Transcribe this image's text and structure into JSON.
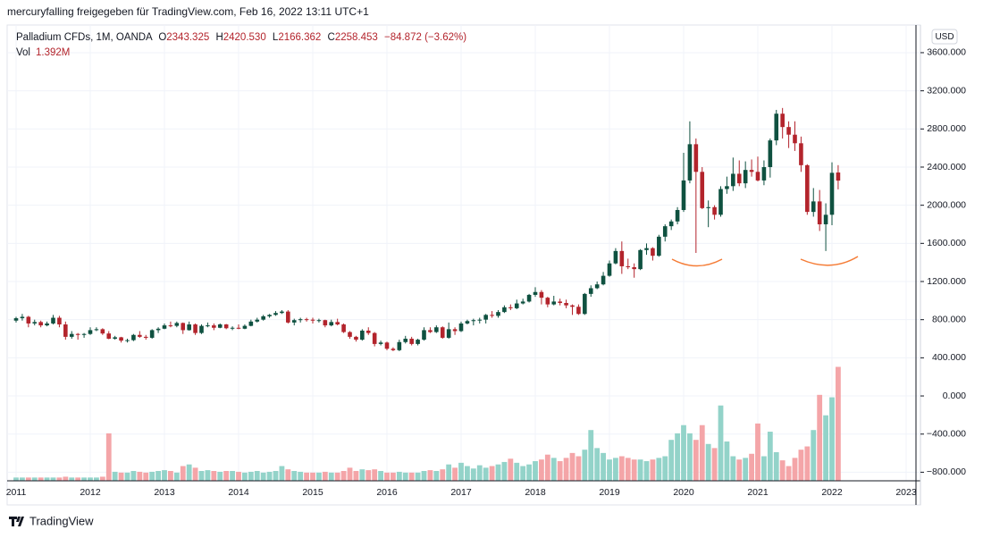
{
  "header": {
    "author": "mercuryfalling freigegeben für TradingView.com, Feb 16, 2022 13:11 UTC+1",
    "currency": "USD",
    "brand": "TradingView"
  },
  "chart_data": {
    "type": "candlestick",
    "title": "Palladium CFDs, 1M, OANDA",
    "legend": {
      "open_prefix": "O",
      "open": "2343.325",
      "high_prefix": "H",
      "high": "2420.530",
      "low_prefix": "L",
      "low": "2166.362",
      "close_prefix": "C",
      "close": "2258.453",
      "change": "−84.872 (−3.62%)",
      "volume_prefix": "Vol",
      "volume": "1.392M"
    },
    "up_color": "#0f5140",
    "down_color": "#b3242c",
    "volume_up_color": "#93d3c9",
    "volume_down_color": "#f4a5a8",
    "grid": true,
    "ylim": [
      -890,
      3890
    ],
    "yticks": [
      {
        "value": 3600,
        "label": "3600.000"
      },
      {
        "value": 3200,
        "label": "3200.000"
      },
      {
        "value": 2800,
        "label": "2800.000"
      },
      {
        "value": 2400,
        "label": "2400.000"
      },
      {
        "value": 2000,
        "label": "2000.000"
      },
      {
        "value": 1600,
        "label": "1600.000"
      },
      {
        "value": 1200,
        "label": "1200.000"
      },
      {
        "value": 800,
        "label": "800.000"
      },
      {
        "value": 400,
        "label": "400.000"
      },
      {
        "value": 0,
        "label": "0.000"
      },
      {
        "value": -400,
        "label": "−400.000"
      },
      {
        "value": -800,
        "label": "−800.000"
      }
    ],
    "xticks": [
      "2011",
      "2012",
      "2013",
      "2014",
      "2015",
      "2016",
      "2017",
      "2018",
      "2019",
      "2020",
      "2021",
      "2022",
      "2023"
    ],
    "ohlc": [
      [
        790,
        830,
        770,
        815
      ],
      [
        815,
        860,
        790,
        830
      ],
      [
        830,
        840,
        720,
        760
      ],
      [
        760,
        800,
        740,
        775
      ],
      [
        775,
        790,
        720,
        740
      ],
      [
        740,
        780,
        730,
        760
      ],
      [
        760,
        850,
        750,
        820
      ],
      [
        820,
        840,
        720,
        750
      ],
      [
        750,
        780,
        590,
        620
      ],
      [
        620,
        680,
        600,
        650
      ],
      [
        650,
        660,
        590,
        640
      ],
      [
        640,
        660,
        610,
        650
      ],
      [
        650,
        720,
        640,
        690
      ],
      [
        690,
        720,
        680,
        700
      ],
      [
        700,
        710,
        640,
        655
      ],
      [
        655,
        680,
        595,
        600
      ],
      [
        600,
        630,
        590,
        615
      ],
      [
        615,
        620,
        560,
        580
      ],
      [
        580,
        600,
        560,
        585
      ],
      [
        585,
        650,
        575,
        640
      ],
      [
        640,
        680,
        610,
        620
      ],
      [
        620,
        640,
        590,
        610
      ],
      [
        610,
        700,
        600,
        690
      ],
      [
        690,
        720,
        660,
        705
      ],
      [
        705,
        760,
        700,
        740
      ],
      [
        740,
        780,
        720,
        735
      ],
      [
        735,
        780,
        720,
        765
      ],
      [
        765,
        770,
        650,
        690
      ],
      [
        690,
        780,
        685,
        750
      ],
      [
        750,
        760,
        640,
        660
      ],
      [
        660,
        750,
        650,
        735
      ],
      [
        735,
        770,
        720,
        740
      ],
      [
        740,
        760,
        690,
        715
      ],
      [
        715,
        760,
        710,
        750
      ],
      [
        750,
        755,
        700,
        710
      ],
      [
        710,
        730,
        690,
        715
      ],
      [
        715,
        750,
        700,
        705
      ],
      [
        705,
        750,
        700,
        735
      ],
      [
        735,
        800,
        730,
        780
      ],
      [
        780,
        820,
        770,
        800
      ],
      [
        800,
        850,
        790,
        835
      ],
      [
        835,
        860,
        820,
        850
      ],
      [
        850,
        890,
        840,
        870
      ],
      [
        870,
        900,
        860,
        885
      ],
      [
        885,
        900,
        760,
        770
      ],
      [
        770,
        810,
        740,
        795
      ],
      [
        795,
        820,
        770,
        805
      ],
      [
        805,
        820,
        780,
        800
      ],
      [
        800,
        820,
        760,
        790
      ],
      [
        790,
        810,
        770,
        795
      ],
      [
        795,
        800,
        720,
        740
      ],
      [
        740,
        800,
        730,
        775
      ],
      [
        775,
        810,
        740,
        750
      ],
      [
        750,
        760,
        660,
        670
      ],
      [
        670,
        680,
        600,
        620
      ],
      [
        620,
        630,
        570,
        590
      ],
      [
        590,
        700,
        580,
        685
      ],
      [
        685,
        720,
        640,
        660
      ],
      [
        660,
        670,
        520,
        545
      ],
      [
        545,
        580,
        530,
        560
      ],
      [
        560,
        570,
        480,
        495
      ],
      [
        495,
        510,
        470,
        480
      ],
      [
        480,
        590,
        470,
        565
      ],
      [
        565,
        630,
        550,
        600
      ],
      [
        600,
        620,
        530,
        545
      ],
      [
        545,
        600,
        530,
        590
      ],
      [
        590,
        720,
        580,
        690
      ],
      [
        690,
        720,
        660,
        670
      ],
      [
        670,
        740,
        660,
        720
      ],
      [
        720,
        730,
        600,
        610
      ],
      [
        610,
        770,
        600,
        700
      ],
      [
        700,
        720,
        640,
        680
      ],
      [
        680,
        780,
        670,
        760
      ],
      [
        760,
        800,
        750,
        785
      ],
      [
        785,
        810,
        740,
        795
      ],
      [
        795,
        820,
        760,
        800
      ],
      [
        800,
        860,
        760,
        850
      ],
      [
        850,
        890,
        820,
        840
      ],
      [
        840,
        900,
        820,
        880
      ],
      [
        880,
        950,
        870,
        930
      ],
      [
        930,
        960,
        900,
        920
      ],
      [
        920,
        1010,
        910,
        970
      ],
      [
        970,
        1020,
        960,
        990
      ],
      [
        990,
        1070,
        980,
        1060
      ],
      [
        1060,
        1140,
        1040,
        1090
      ],
      [
        1090,
        1110,
        960,
        1030
      ],
      [
        1030,
        1040,
        930,
        960
      ],
      [
        960,
        1050,
        950,
        990
      ],
      [
        990,
        1020,
        950,
        975
      ],
      [
        975,
        1010,
        920,
        950
      ],
      [
        950,
        960,
        850,
        935
      ],
      [
        935,
        960,
        850,
        860
      ],
      [
        860,
        1080,
        850,
        1070
      ],
      [
        1070,
        1160,
        1040,
        1130
      ],
      [
        1130,
        1200,
        1120,
        1170
      ],
      [
        1170,
        1300,
        1160,
        1260
      ],
      [
        1260,
        1420,
        1250,
        1390
      ],
      [
        1390,
        1550,
        1380,
        1520
      ],
      [
        1520,
        1620,
        1280,
        1360
      ],
      [
        1360,
        1440,
        1330,
        1350
      ],
      [
        1350,
        1390,
        1240,
        1330
      ],
      [
        1330,
        1540,
        1320,
        1530
      ],
      [
        1530,
        1600,
        1480,
        1550
      ],
      [
        1550,
        1560,
        1420,
        1470
      ],
      [
        1470,
        1690,
        1460,
        1670
      ],
      [
        1670,
        1800,
        1620,
        1780
      ],
      [
        1780,
        1850,
        1740,
        1830
      ],
      [
        1830,
        1980,
        1800,
        1950
      ],
      [
        1950,
        2550,
        1930,
        2260
      ],
      [
        2260,
        2880,
        2230,
        2640
      ],
      [
        2640,
        2700,
        1500,
        2350
      ],
      [
        2350,
        2400,
        1960,
        1970
      ],
      [
        1970,
        2050,
        1770,
        1980
      ],
      [
        1980,
        2000,
        1850,
        1900
      ],
      [
        1900,
        2200,
        1880,
        2170
      ],
      [
        2170,
        2300,
        2120,
        2200
      ],
      [
        2200,
        2500,
        2150,
        2330
      ],
      [
        2330,
        2470,
        2200,
        2230
      ],
      [
        2230,
        2460,
        2180,
        2370
      ],
      [
        2370,
        2480,
        2300,
        2350
      ],
      [
        2350,
        2510,
        2250,
        2260
      ],
      [
        2260,
        2470,
        2210,
        2400
      ],
      [
        2400,
        2700,
        2290,
        2680
      ],
      [
        2680,
        3000,
        2630,
        2960
      ],
      [
        2960,
        3020,
        2700,
        2820
      ],
      [
        2820,
        2880,
        2600,
        2740
      ],
      [
        2740,
        2880,
        2570,
        2650
      ],
      [
        2650,
        2720,
        2350,
        2420
      ],
      [
        2420,
        2430,
        1900,
        1930
      ],
      [
        1930,
        2180,
        1880,
        2040
      ],
      [
        2040,
        2160,
        1730,
        1800
      ],
      [
        1800,
        2020,
        1520,
        1900
      ],
      [
        1900,
        2450,
        1790,
        2340
      ],
      [
        2343.325,
        2420.53,
        2166.362,
        2258.453
      ]
    ],
    "volume": [
      0.04,
      0.04,
      0.04,
      0.04,
      0.04,
      0.04,
      0.04,
      0.04,
      0.05,
      0.04,
      0.04,
      0.04,
      0.04,
      0.04,
      0.05,
      0.58,
      0.11,
      0.1,
      0.1,
      0.12,
      0.11,
      0.1,
      0.11,
      0.12,
      0.13,
      0.12,
      0.1,
      0.18,
      0.2,
      0.16,
      0.12,
      0.13,
      0.12,
      0.11,
      0.12,
      0.12,
      0.11,
      0.1,
      0.11,
      0.12,
      0.1,
      0.11,
      0.12,
      0.18,
      0.14,
      0.12,
      0.11,
      0.1,
      0.1,
      0.1,
      0.11,
      0.1,
      0.1,
      0.12,
      0.16,
      0.12,
      0.14,
      0.13,
      0.14,
      0.12,
      0.1,
      0.1,
      0.11,
      0.1,
      0.1,
      0.1,
      0.12,
      0.13,
      0.12,
      0.14,
      0.2,
      0.16,
      0.22,
      0.18,
      0.15,
      0.19,
      0.16,
      0.18,
      0.2,
      0.23,
      0.27,
      0.22,
      0.18,
      0.2,
      0.24,
      0.26,
      0.32,
      0.28,
      0.24,
      0.28,
      0.34,
      0.3,
      0.38,
      0.62,
      0.4,
      0.34,
      0.26,
      0.28,
      0.3,
      0.28,
      0.26,
      0.26,
      0.24,
      0.26,
      0.28,
      0.3,
      0.5,
      0.58,
      0.68,
      0.58,
      0.5,
      0.68,
      0.45,
      0.4,
      0.92,
      0.48,
      0.3,
      0.26,
      0.28,
      0.33,
      0.7,
      0.3,
      0.6,
      0.35,
      0.25,
      0.18,
      0.28,
      0.38,
      0.42,
      0.62,
      1.05,
      0.8,
      1.02,
      1.392
    ]
  }
}
